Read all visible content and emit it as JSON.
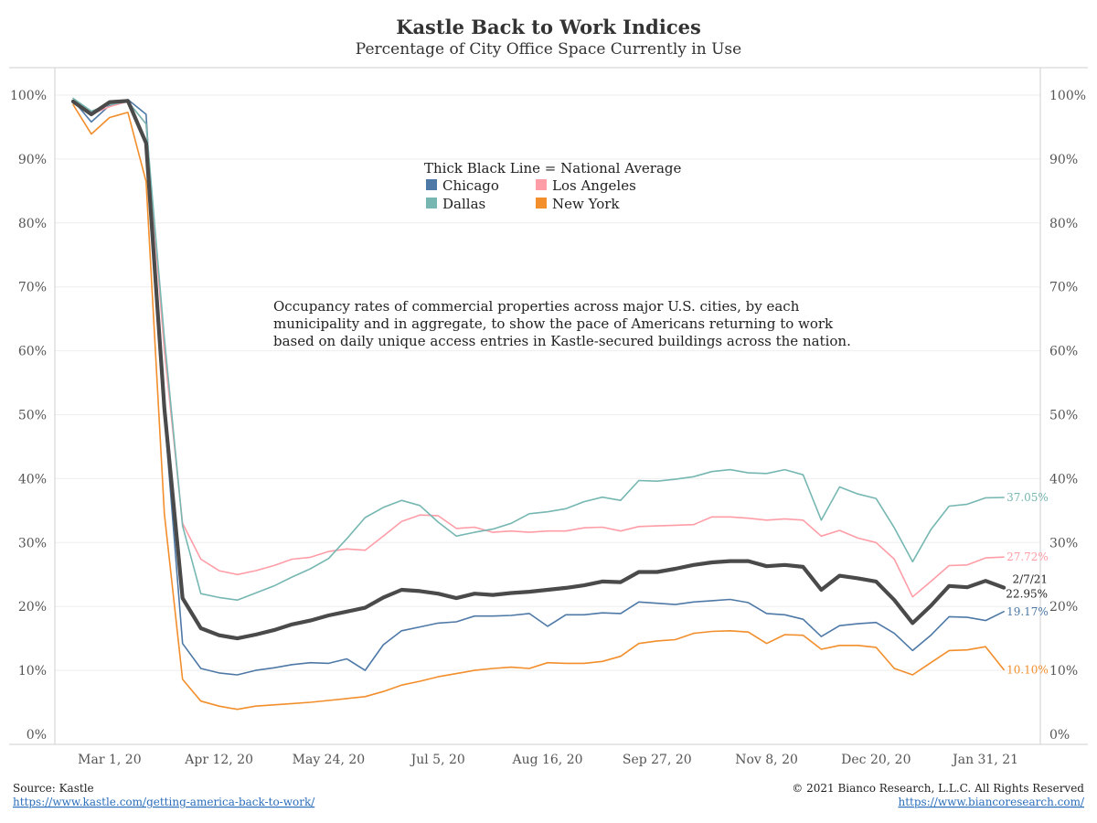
{
  "chart_data": {
    "type": "line",
    "title": "Kastle Back to Work Indices",
    "subtitle": "Percentage of City Office Space Currently in Use",
    "ylim": [
      0,
      100
    ],
    "y_ticks": [
      "0%",
      "10%",
      "20%",
      "30%",
      "40%",
      "50%",
      "60%",
      "70%",
      "80%",
      "90%",
      "100%"
    ],
    "x_tick_labels": [
      "Mar 1, 20",
      "Apr 12, 20",
      "May 24, 20",
      "Jul 5, 20",
      "Aug 16, 20",
      "Sep 27, 20",
      "Nov 8, 20",
      "Dec 20, 20",
      "Jan 31, 21"
    ],
    "x_tick_dates": [
      "2020-03-01",
      "2020-04-12",
      "2020-05-24",
      "2020-07-05",
      "2020-08-16",
      "2020-09-27",
      "2020-11-08",
      "2020-12-20",
      "2021-01-31"
    ],
    "x_range": [
      "2020-02-09",
      "2021-02-21"
    ],
    "grid": true,
    "legend_header": "Thick Black Line = National Average",
    "legend": [
      {
        "name": "Chicago",
        "color": "#4e79a7"
      },
      {
        "name": "Los Angeles",
        "color": "#ff9da7"
      },
      {
        "name": "Dallas",
        "color": "#76b7b2"
      },
      {
        "name": "New York",
        "color": "#f28e2b"
      }
    ],
    "annotation": [
      "Occupancy rates of commercial properties across major U.S. cities, by each",
      "municipality and in aggregate, to show the pace of Americans returning to work",
      "based on daily unique access entries in Kastle-secured buildings across the nation."
    ],
    "x": [
      "2020-02-16",
      "2020-02-23",
      "2020-03-01",
      "2020-03-08",
      "2020-03-15",
      "2020-03-22",
      "2020-03-29",
      "2020-04-05",
      "2020-04-12",
      "2020-04-19",
      "2020-04-26",
      "2020-05-03",
      "2020-05-10",
      "2020-05-17",
      "2020-05-24",
      "2020-05-31",
      "2020-06-07",
      "2020-06-14",
      "2020-06-21",
      "2020-06-28",
      "2020-07-05",
      "2020-07-12",
      "2020-07-19",
      "2020-07-26",
      "2020-08-02",
      "2020-08-09",
      "2020-08-16",
      "2020-08-23",
      "2020-08-30",
      "2020-09-06",
      "2020-09-13",
      "2020-09-20",
      "2020-09-27",
      "2020-10-04",
      "2020-10-11",
      "2020-10-18",
      "2020-10-25",
      "2020-11-01",
      "2020-11-08",
      "2020-11-15",
      "2020-11-22",
      "2020-11-29",
      "2020-12-06",
      "2020-12-13",
      "2020-12-20",
      "2020-12-27",
      "2021-01-03",
      "2021-01-10",
      "2021-01-17",
      "2021-01-24",
      "2021-01-31",
      "2021-02-07"
    ],
    "series": [
      {
        "name": "Chicago",
        "color": "#4e79a7",
        "width": 1.6,
        "end_label": "19.17%",
        "values": [
          99.2,
          95.8,
          98.4,
          99.3,
          97.0,
          50.0,
          14.2,
          10.3,
          9.6,
          9.3,
          10.0,
          10.4,
          10.9,
          11.2,
          11.1,
          11.8,
          10.0,
          14.0,
          16.2,
          16.8,
          17.4,
          17.6,
          18.5,
          18.5,
          18.6,
          18.9,
          16.9,
          18.7,
          18.7,
          19.0,
          18.9,
          20.7,
          20.5,
          20.3,
          20.7,
          20.9,
          21.1,
          20.6,
          18.9,
          18.7,
          18.0,
          15.3,
          17.0,
          17.3,
          17.5,
          15.8,
          13.1,
          15.5,
          18.4,
          18.3,
          17.8,
          19.2
        ]
      },
      {
        "name": "Los Angeles",
        "color": "#ff9da7",
        "width": 1.6,
        "end_label": "27.72%",
        "values": [
          99.0,
          97.0,
          98.2,
          99.0,
          95.5,
          60.0,
          33.0,
          27.4,
          25.6,
          25.0,
          25.6,
          26.4,
          27.4,
          27.7,
          28.6,
          29.0,
          28.8,
          31.0,
          33.3,
          34.3,
          34.2,
          32.2,
          32.4,
          31.6,
          31.8,
          31.6,
          31.8,
          31.8,
          32.3,
          32.4,
          31.8,
          32.5,
          32.6,
          32.7,
          32.8,
          34.0,
          34.0,
          33.8,
          33.5,
          33.7,
          33.5,
          31.0,
          31.9,
          30.7,
          30.0,
          27.4,
          21.5,
          23.9,
          26.4,
          26.5,
          27.6,
          27.72
        ]
      },
      {
        "name": "Dallas",
        "color": "#76b7b2",
        "width": 1.6,
        "end_label": "37.05%",
        "values": [
          99.5,
          97.5,
          98.5,
          99.0,
          95.5,
          62.0,
          32.6,
          22.0,
          21.4,
          21.0,
          22.1,
          23.2,
          24.6,
          25.9,
          27.5,
          30.6,
          33.9,
          35.5,
          36.6,
          35.8,
          33.2,
          31.0,
          31.6,
          32.1,
          33.0,
          34.5,
          34.8,
          35.3,
          36.4,
          37.1,
          36.6,
          39.7,
          39.6,
          39.9,
          40.3,
          41.1,
          41.4,
          40.9,
          40.8,
          41.4,
          40.6,
          33.5,
          38.7,
          37.6,
          36.9,
          32.3,
          27.0,
          32.0,
          35.7,
          36.0,
          37.0,
          37.05
        ]
      },
      {
        "name": "New York",
        "color": "#f28e2b",
        "width": 1.6,
        "end_label": "10.10%",
        "values": [
          98.5,
          93.9,
          96.5,
          97.3,
          86.5,
          34.5,
          8.6,
          5.2,
          4.4,
          3.9,
          4.4,
          4.6,
          4.8,
          5.0,
          5.3,
          5.6,
          5.9,
          6.7,
          7.7,
          8.3,
          9.0,
          9.5,
          10.0,
          10.3,
          10.5,
          10.3,
          11.2,
          11.1,
          11.1,
          11.4,
          12.2,
          14.2,
          14.6,
          14.8,
          15.8,
          16.1,
          16.2,
          16.0,
          14.2,
          15.6,
          15.5,
          13.3,
          13.9,
          13.9,
          13.6,
          10.3,
          9.3,
          11.2,
          13.1,
          13.2,
          13.7,
          10.1
        ]
      },
      {
        "name": "National Average",
        "color": "#4a4a4a",
        "width": 4.2,
        "end_label": "22.95%",
        "end_date_label": "2/7/21",
        "values": [
          99.0,
          97.0,
          98.9,
          99.1,
          92.5,
          51.0,
          21.3,
          16.6,
          15.5,
          15.0,
          15.6,
          16.3,
          17.2,
          17.8,
          18.6,
          19.2,
          19.8,
          21.4,
          22.6,
          22.4,
          22.0,
          21.3,
          22.0,
          21.8,
          22.1,
          22.3,
          22.6,
          22.9,
          23.3,
          23.9,
          23.8,
          25.4,
          25.4,
          25.9,
          26.5,
          26.9,
          27.1,
          27.1,
          26.3,
          26.5,
          26.2,
          22.6,
          24.8,
          24.4,
          23.9,
          21.0,
          17.4,
          20.1,
          23.2,
          23.0,
          24.0,
          22.95
        ]
      }
    ]
  },
  "footer": {
    "source_label": "Source: Kastle",
    "source_link": "https://www.kastle.com/getting-america-back-to-work/",
    "copyright": "© 2021 Bianco Research, L.L.C. All Rights Reserved",
    "site_link": "https://www.biancoresearch.com/"
  }
}
